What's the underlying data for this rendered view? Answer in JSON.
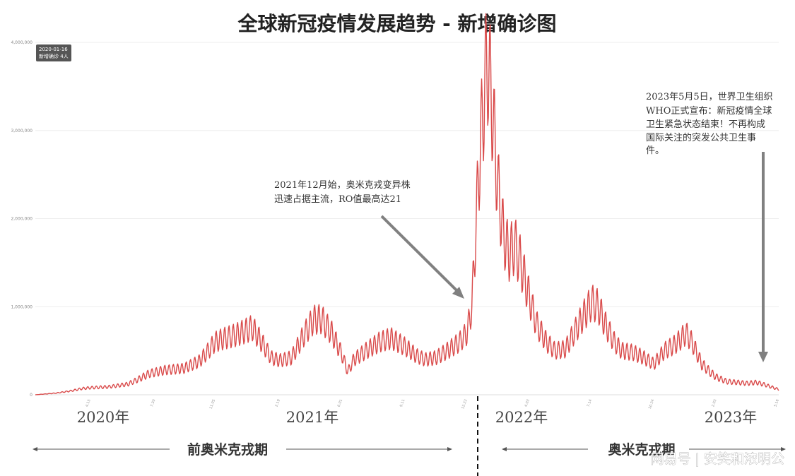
{
  "chart_data": {
    "type": "line",
    "title": "全球新冠疫情发展趋势 - 新增确诊图",
    "ylim": [
      0,
      4000000
    ],
    "yticks": [
      0,
      1000000,
      2000000,
      3000000,
      4000000
    ],
    "ytick_labels": [
      "0",
      "1,000,000",
      "2,000,000",
      "3,000,000",
      "4,000,000"
    ],
    "xlim": [
      "2020-01-16",
      "2023-05-16"
    ],
    "xticks": [
      {
        "date": "2020-04-15",
        "label": "4.15"
      },
      {
        "date": "2020-07-30",
        "label": "7.30"
      },
      {
        "date": "2020-11-05",
        "label": "11.05"
      },
      {
        "date": "2021-02-19",
        "label": "2.19"
      },
      {
        "date": "2021-06-01",
        "label": "6.01"
      },
      {
        "date": "2021-09-11",
        "label": "9.11"
      },
      {
        "date": "2021-12-22",
        "label": "12.22"
      },
      {
        "date": "2022-04-03",
        "label": "4.03"
      },
      {
        "date": "2022-07-14",
        "label": "7.14"
      },
      {
        "date": "2022-10-24",
        "label": "10.24"
      },
      {
        "date": "2023-02-03",
        "label": "2.03"
      },
      {
        "date": "2023-05-16",
        "label": "5.16"
      }
    ],
    "color": "#d94a4a",
    "grid": true,
    "series": [
      {
        "x": [
          "2020-01-16",
          "2020-02-20",
          "2020-03-15",
          "2020-04-01",
          "2020-04-15",
          "2020-05-15",
          "2020-06-15",
          "2020-07-01",
          "2020-07-20",
          "2020-08-15",
          "2020-09-15",
          "2020-10-10",
          "2020-10-25",
          "2020-11-05",
          "2020-11-20",
          "2020-12-10",
          "2021-01-05",
          "2021-01-20",
          "2021-02-05",
          "2021-02-19",
          "2021-03-10",
          "2021-04-01",
          "2021-04-15",
          "2021-04-28",
          "2021-05-15",
          "2021-06-01",
          "2021-06-10",
          "2021-06-20",
          "2021-07-10",
          "2021-08-01",
          "2021-08-20",
          "2021-09-11",
          "2021-10-01",
          "2021-10-15",
          "2021-11-01",
          "2021-11-20",
          "2021-12-10",
          "2021-12-22",
          "2021-12-30",
          "2022-01-05",
          "2022-01-10",
          "2022-01-15",
          "2022-01-20",
          "2022-01-25",
          "2022-02-01",
          "2022-02-10",
          "2022-02-20",
          "2022-03-01",
          "2022-03-10",
          "2022-03-20",
          "2022-04-03",
          "2022-04-15",
          "2022-05-01",
          "2022-05-15",
          "2022-06-01",
          "2022-06-15",
          "2022-07-01",
          "2022-07-14",
          "2022-07-25",
          "2022-08-05",
          "2022-08-20",
          "2022-09-01",
          "2022-09-20",
          "2022-10-05",
          "2022-10-24",
          "2022-11-10",
          "2022-11-25",
          "2022-12-05",
          "2022-12-15",
          "2022-12-25",
          "2023-01-10",
          "2023-01-25",
          "2023-02-03",
          "2023-02-20",
          "2023-03-10",
          "2023-03-25",
          "2023-04-10",
          "2023-04-25",
          "2023-05-16"
        ],
        "y": [
          4,
          20000,
          45000,
          70000,
          80000,
          90000,
          120000,
          170000,
          240000,
          280000,
          300000,
          380000,
          500000,
          600000,
          640000,
          680000,
          760000,
          600000,
          420000,
          390000,
          420000,
          700000,
          850000,
          860000,
          700000,
          450000,
          260000,
          400000,
          500000,
          600000,
          640000,
          550000,
          440000,
          400000,
          420000,
          500000,
          600000,
          700000,
          1000000,
          1800000,
          2500000,
          3000000,
          3500000,
          3800000,
          3300000,
          2400000,
          1800000,
          1600000,
          1700000,
          1500000,
          1100000,
          800000,
          600000,
          500000,
          520000,
          700000,
          900000,
          1050000,
          1000000,
          800000,
          600000,
          500000,
          480000,
          430000,
          350000,
          500000,
          560000,
          620000,
          700000,
          600000,
          350000,
          250000,
          200000,
          150000,
          140000,
          130000,
          140000,
          110000,
          60000
        ]
      }
    ],
    "year_labels": [
      "2020年",
      "2021年",
      "2022年",
      "2023年"
    ],
    "periods": [
      "前奥米克戎期",
      "奥米克戎期"
    ],
    "annotations": [
      {
        "lines": [
          "2021年12月始，奥米克戎变异株",
          "迅速占据主流，RO值最高达21"
        ]
      },
      {
        "lines": [
          "2023年5月5日，世界卫生组织",
          "WHO正式宣布：新冠疫情全球",
          "卫生紧急状态结束！不再构成",
          "国际关注的突发公共卫生事",
          "件。"
        ]
      }
    ],
    "tooltip": {
      "date": "2020-01-16",
      "text": "新增确诊 4人"
    },
    "watermark": "网易号 | 安笑和浓明公"
  }
}
